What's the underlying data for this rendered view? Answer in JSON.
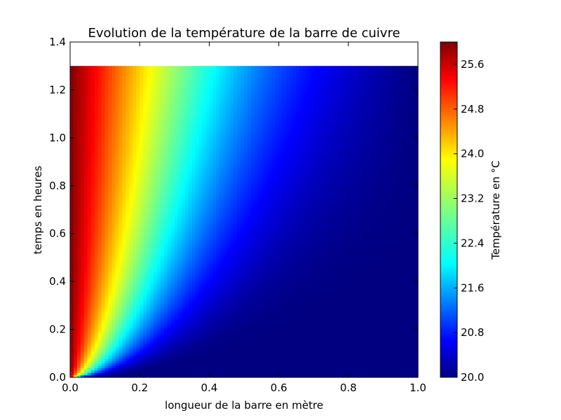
{
  "chart_data": {
    "type": "heatmap",
    "title": "Evolution de la température de la barre de cuivre",
    "xlabel": "longueur de la barre en mètre",
    "ylabel": "temps en heures",
    "xlim": [
      0.0,
      1.0
    ],
    "ylim": [
      0.0,
      1.4
    ],
    "data_extent": {
      "x": [
        0.0,
        1.0
      ],
      "y": [
        0.0,
        1.3
      ]
    },
    "x_ticks": [
      "0.0",
      "0.2",
      "0.4",
      "0.6",
      "0.8",
      "1.0"
    ],
    "y_ticks": [
      "0.0",
      "0.2",
      "0.4",
      "0.6",
      "0.8",
      "1.0",
      "1.2",
      "1.4"
    ],
    "colormap": "jet",
    "colorbar": {
      "label": "Température en °C",
      "range": [
        20.0,
        26.0
      ],
      "ticks": [
        "20.0",
        "20.8",
        "21.6",
        "22.4",
        "23.2",
        "24.0",
        "24.8",
        "25.6"
      ]
    },
    "boundary_temperature_left": 26.0,
    "initial_temperature": 20.0,
    "steady_state_temperature_at_right": 20.0,
    "grid": false,
    "legend": "none"
  }
}
